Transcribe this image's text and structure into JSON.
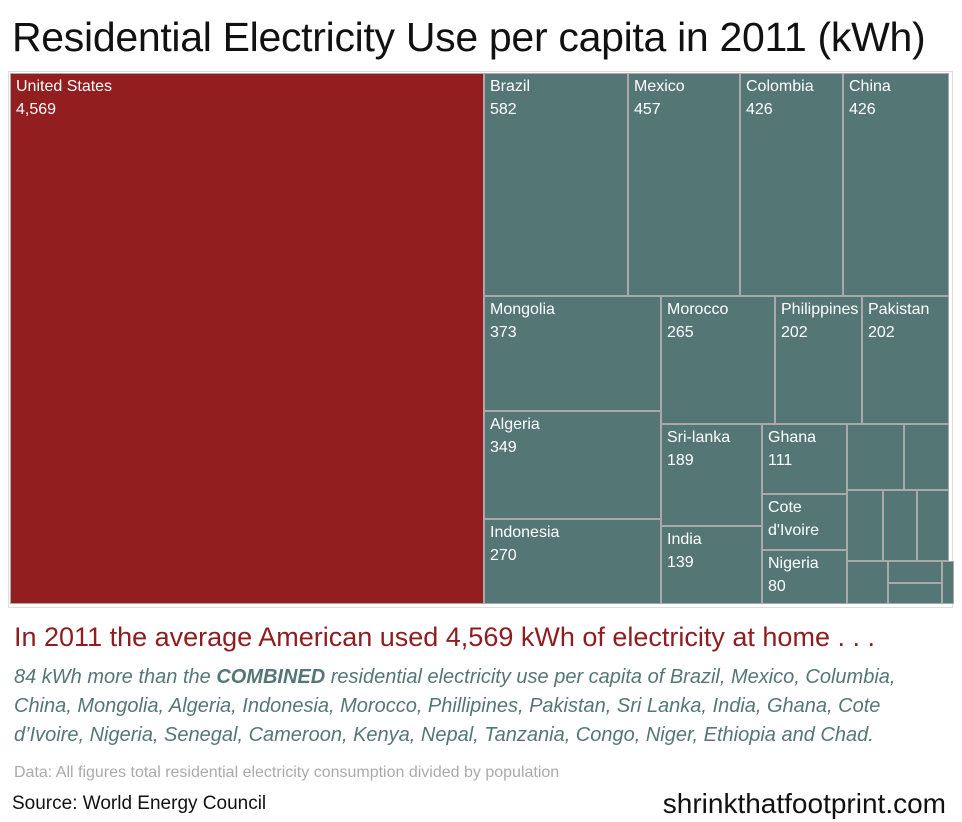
{
  "chart_data": {
    "type": "treemap",
    "title": "Residential Electricity Use per capita in 2011 (kWh)",
    "unit": "kWh",
    "colors": {
      "highlight": "#931e1f",
      "default": "#547776",
      "border": "#a9a9a9"
    },
    "cells": [
      {
        "label": "United States",
        "value": "4,569",
        "highlight": true
      },
      {
        "label": "Brazil",
        "value": "582"
      },
      {
        "label": "Mexico",
        "value": "457"
      },
      {
        "label": "Colombia",
        "value": "426"
      },
      {
        "label": "China",
        "value": "426"
      },
      {
        "label": "Mongolia",
        "value": "373"
      },
      {
        "label": "Algeria",
        "value": "349"
      },
      {
        "label": "Indonesia",
        "value": "270"
      },
      {
        "label": "Morocco",
        "value": "265"
      },
      {
        "label": "Philippines",
        "value": "202"
      },
      {
        "label": "Pakistan",
        "value": "202"
      },
      {
        "label": "Sri-lanka",
        "value": "189"
      },
      {
        "label": "India",
        "value": "139"
      },
      {
        "label": "Ghana",
        "value": "111"
      },
      {
        "label": "Cote d'Ivoire",
        "value": null
      },
      {
        "label": "Nigeria",
        "value": "80"
      },
      {
        "label": null,
        "value": null
      },
      {
        "label": null,
        "value": null
      },
      {
        "label": null,
        "value": null
      },
      {
        "label": null,
        "value": null
      },
      {
        "label": null,
        "value": null
      },
      {
        "label": null,
        "value": null
      },
      {
        "label": null,
        "value": null
      },
      {
        "label": null,
        "value": null
      },
      {
        "label": null,
        "value": null
      }
    ]
  },
  "headline": "In 2011 the average American used 4,569 kWh of electricity at home . . .",
  "body": {
    "pre": "84 kWh more than the ",
    "bold": "COMBINED",
    "post": " residential electricity use per capita of Brazil, Mexico, Columbia, China, Mongolia, Algeria, Indonesia, Morocco, Phillipines, Pakistan, Sri Lanka, India, Ghana, Cote d’Ivoire, Nigeria, Senegal, Cameroon, Kenya, Nepal, Tanzania, Congo, Niger, Ethiopia and Chad."
  },
  "note": "Data: All figures total residential electricity consumption divided by population",
  "source": "Source: World Energy Council",
  "site": "shrinkthatfootprint.com"
}
